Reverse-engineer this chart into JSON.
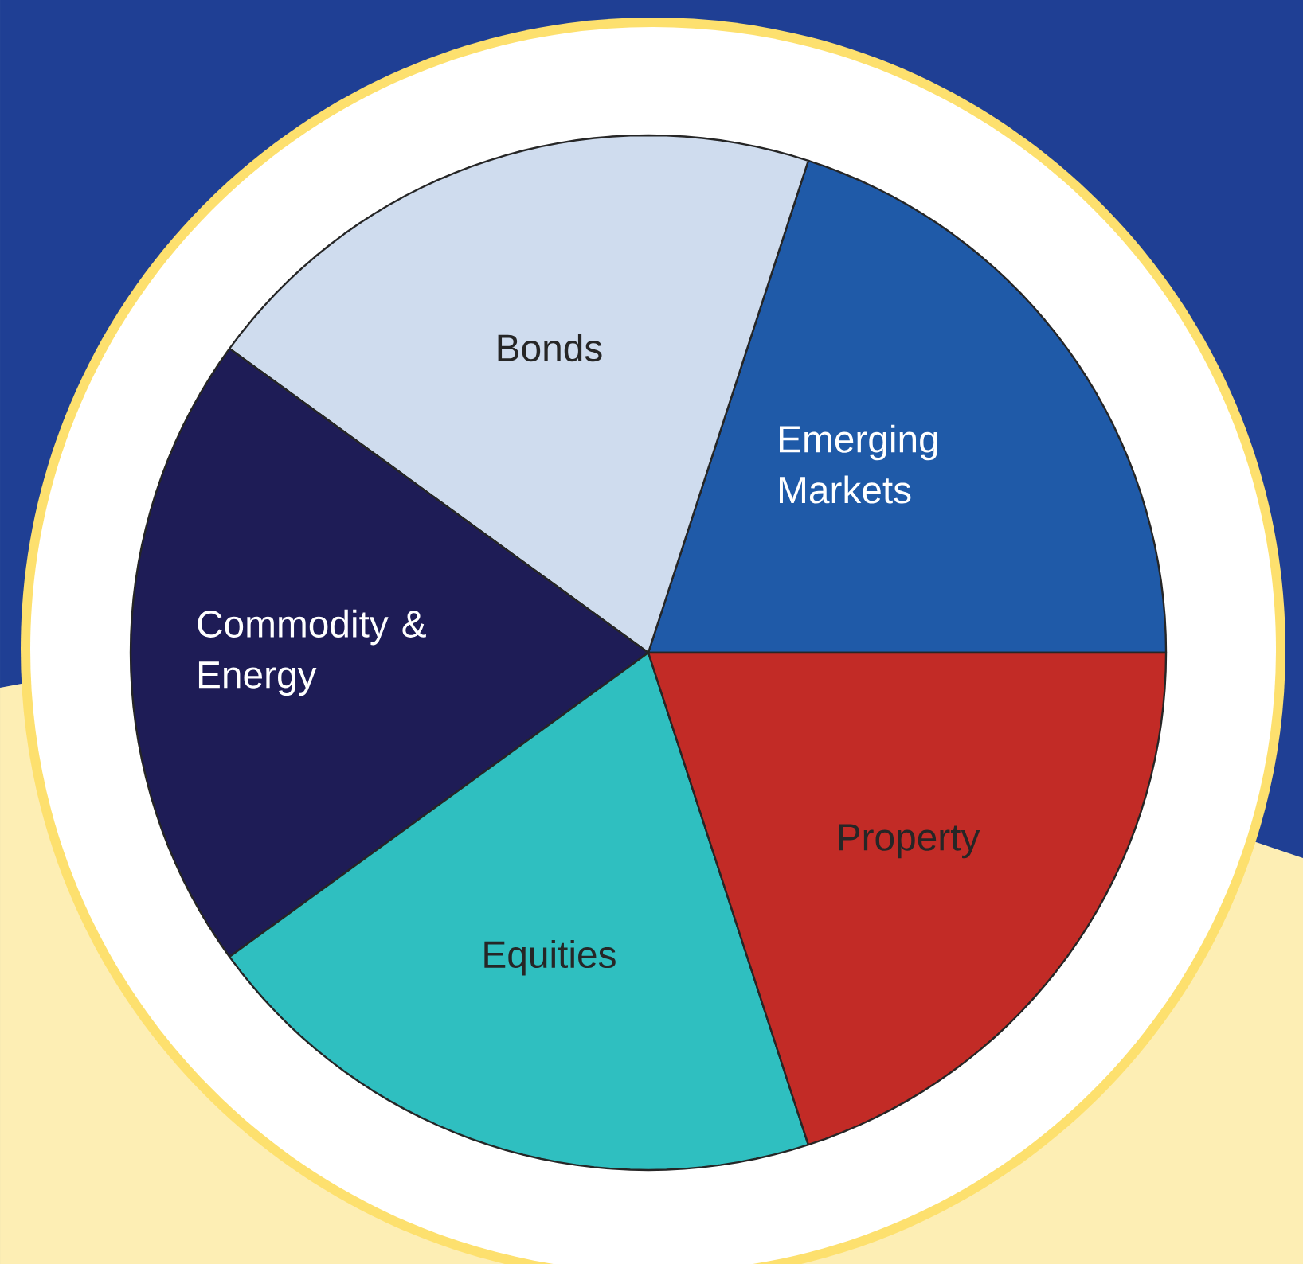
{
  "chart_data": {
    "type": "pie",
    "categories": [
      "Emerging Markets",
      "Bonds",
      "Commodity & Energy",
      "Equities",
      "Property"
    ],
    "values": [
      20,
      20,
      20,
      20,
      20
    ],
    "colors": [
      "#1f5aa8",
      "#cfdcee",
      "#1e1c56",
      "#2fbfc0",
      "#c22b26"
    ]
  }
}
